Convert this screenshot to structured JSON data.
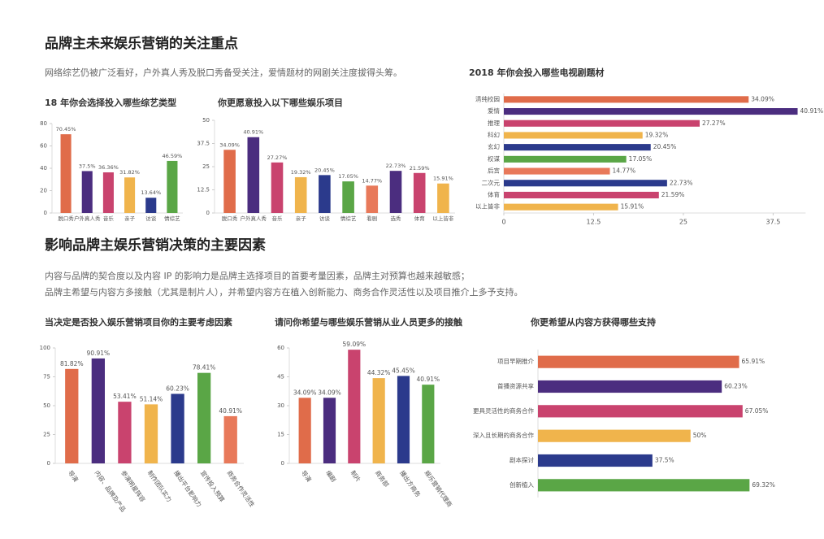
{
  "sections": [
    {
      "title": "品牌主未来娱乐营销的关注重点",
      "text": [
        "网络综艺仍被广泛看好，户外真人秀及脱口秀备受关注，爱情题材的网剧关注度拔得头筹。"
      ]
    },
    {
      "title": "影响品牌主娱乐营销决策的主要因素",
      "text": [
        "内容与品牌的契合度以及内容 IP 的影响力是品牌主选择项目的首要考量因素，品牌主对预算也越来越敏感；",
        "品牌主希望与内容方多接触（尤其是制片人），并希望内容方在植入创新能力、商务合作灵活性以及项目推介上多予支持。"
      ]
    }
  ],
  "chart_data": [
    {
      "type": "bar",
      "orientation": "vertical",
      "title": "18 年你会选择投入哪些综艺类型",
      "categories": [
        "脱口秀",
        "户外真人秀",
        "音乐",
        "亲子",
        "访谈",
        "情综艺"
      ],
      "values": [
        70.45,
        37.5,
        36.36,
        31.82,
        13.64,
        46.59
      ],
      "value_labels": [
        "70.45%",
        "37.5%",
        "36.36%",
        "31.82%",
        "13.64%",
        "46.59%"
      ],
      "colors": [
        "#e06c4a",
        "#4b2d7f",
        "#c9436e",
        "#f0b44c",
        "#2b3a8c",
        "#5aa646"
      ],
      "ylim": [
        0,
        80
      ],
      "yticks": [
        0,
        20,
        40,
        60,
        80
      ]
    },
    {
      "type": "bar",
      "orientation": "vertical",
      "title": "你更愿意投入以下哪些娱乐项目",
      "categories": [
        "脱口秀",
        "户外真人秀",
        "音乐",
        "亲子",
        "访谈",
        "情综艺",
        "看剧",
        "选秀",
        "体育",
        "以上皆非"
      ],
      "values": [
        34.09,
        40.91,
        27.27,
        19.32,
        20.45,
        17.05,
        14.77,
        22.73,
        21.59,
        15.91
      ],
      "value_labels": [
        "34.09%",
        "40.91%",
        "27.27%",
        "19.32%",
        "20.45%",
        "17.05%",
        "14.77%",
        "22.73%",
        "21.59%",
        "15.91%"
      ],
      "colors": [
        "#e06c4a",
        "#4b2d7f",
        "#c9436e",
        "#f0b44c",
        "#2b3a8c",
        "#5aa646",
        "#e8795a",
        "#4b2d7f",
        "#c9436e",
        "#f0b44c"
      ],
      "ylim": [
        0,
        50
      ],
      "yticks": [
        0,
        12.5,
        25,
        37.5,
        50
      ]
    },
    {
      "type": "bar",
      "orientation": "horizontal",
      "title": "2018 年你会投入哪些电视剧题材",
      "categories": [
        "清纯校园",
        "爱情",
        "推理",
        "科幻",
        "玄幻",
        "权谋",
        "后宫",
        "二次元",
        "体育",
        "以上皆非"
      ],
      "values": [
        34.09,
        40.91,
        27.27,
        19.32,
        20.45,
        17.05,
        14.77,
        22.73,
        21.59,
        15.91
      ],
      "value_labels": [
        "34.09%",
        "40.91%",
        "27.27%",
        "19.32%",
        "20.45%",
        "17.05%",
        "14.77%",
        "22.73%",
        "21.59%",
        "15.91%"
      ],
      "colors": [
        "#e06c4a",
        "#4b2d7f",
        "#c9436e",
        "#f0b44c",
        "#2b3a8c",
        "#5aa646",
        "#e8795a",
        "#2b3a8c",
        "#c9436e",
        "#f0b44c"
      ],
      "xlim": [
        0,
        43
      ],
      "xticks": [
        0,
        12.5,
        25,
        37.5
      ]
    },
    {
      "type": "bar",
      "orientation": "vertical",
      "title": "当决定是否投入娱乐营销项目你的主要考虑因素",
      "categories": [
        "导演",
        "内容、品牌及产品",
        "参演明星阵容",
        "制作团队实力",
        "播出平台影响力",
        "宣传投入预算",
        "商务合作灵活性"
      ],
      "values": [
        81.82,
        90.91,
        53.41,
        51.14,
        60.23,
        78.41,
        40.91
      ],
      "value_labels": [
        "81.82%",
        "90.91%",
        "53.41%",
        "51.14%",
        "60.23%",
        "78.41%",
        "40.91%"
      ],
      "colors": [
        "#e06c4a",
        "#4b2d7f",
        "#c9436e",
        "#f0b44c",
        "#2b3a8c",
        "#5aa646",
        "#e8795a"
      ],
      "ylim": [
        0,
        100
      ],
      "yticks": [
        0,
        25,
        50,
        75,
        100
      ]
    },
    {
      "type": "bar",
      "orientation": "vertical",
      "title": "请问你希望与哪些娱乐营销从业人员更多的接触",
      "categories": [
        "导演",
        "编剧",
        "制片",
        "商务部",
        "播出方商务",
        "娱乐营销代理商"
      ],
      "values": [
        34.09,
        34.09,
        59.09,
        44.32,
        45.45,
        40.91
      ],
      "value_labels": [
        "34.09%",
        "34.09%",
        "59.09%",
        "44.32%",
        "45.45%",
        "40.91%"
      ],
      "colors": [
        "#e06c4a",
        "#4b2d7f",
        "#c9436e",
        "#f0b44c",
        "#2b3a8c",
        "#5aa646"
      ],
      "ylim": [
        0,
        60
      ],
      "yticks": [
        0,
        15,
        30,
        45,
        60
      ]
    },
    {
      "type": "bar",
      "orientation": "horizontal",
      "title": "你更希望从内容方获得哪些支持",
      "categories": [
        "项目早期推介",
        "首播资源共享",
        "更具灵活性的商务合作",
        "深入且长期的商务合作",
        "剧本探讨",
        "创新植入"
      ],
      "values": [
        65.91,
        60.23,
        67.05,
        50,
        37.5,
        69.32
      ],
      "value_labels": [
        "65.91%",
        "60.23%",
        "67.05%",
        "50%",
        "37.5%",
        "69.32%"
      ],
      "colors": [
        "#e06c4a",
        "#4b2d7f",
        "#c9436e",
        "#f0b44c",
        "#2b3a8c",
        "#5aa646"
      ],
      "xlim": [
        0,
        90
      ]
    }
  ]
}
